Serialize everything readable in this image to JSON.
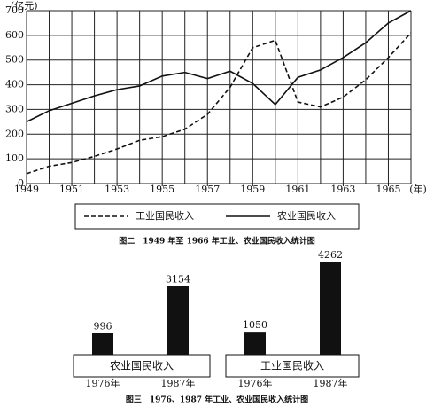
{
  "chart_data": [
    {
      "type": "line",
      "title": "图二　1949 年至 1966 年工业、农业国民收入统计图",
      "y_label": "(亿元)",
      "x_label": "(年)",
      "x": [
        1949,
        1950,
        1951,
        1952,
        1953,
        1954,
        1955,
        1956,
        1957,
        1958,
        1959,
        1960,
        1961,
        1962,
        1963,
        1964,
        1965,
        1966
      ],
      "series": [
        {
          "name": "工业国民收入",
          "color": "#111111",
          "dash": true,
          "values": [
            40,
            70,
            85,
            110,
            140,
            175,
            190,
            220,
            280,
            390,
            550,
            580,
            330,
            310,
            350,
            420,
            510,
            610
          ]
        },
        {
          "name": "农业国民收入",
          "color": "#111111",
          "dash": false,
          "values": [
            250,
            295,
            325,
            355,
            380,
            395,
            435,
            450,
            425,
            455,
            405,
            320,
            430,
            460,
            510,
            570,
            650,
            700
          ]
        }
      ],
      "xlim": [
        1949,
        1966
      ],
      "xticks": [
        1949,
        1951,
        1953,
        1955,
        1957,
        1959,
        1961,
        1963,
        1965
      ],
      "ylim": [
        0,
        700
      ],
      "yticks": [
        0,
        100,
        200,
        300,
        400,
        500,
        600,
        700
      ],
      "grid": true
    },
    {
      "type": "bar",
      "title": "图三　1976、1987 年工业、农业国民收入统计图",
      "categories": [
        "1976年",
        "1987年"
      ],
      "color": "#111111",
      "series": [
        {
          "name": "农业国民收入",
          "values": [
            996,
            3154
          ]
        },
        {
          "name": "工业国民收入",
          "values": [
            1050,
            4262
          ]
        }
      ]
    }
  ]
}
